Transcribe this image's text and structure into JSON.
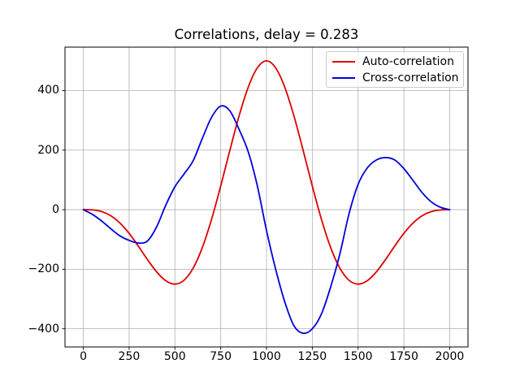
{
  "figure": {
    "background": "#ffffff"
  },
  "chart_data": {
    "type": "line",
    "title": "Correlations, delay = 0.283",
    "xlabel": "",
    "ylabel": "",
    "xlim": [
      -100,
      2100
    ],
    "ylim": [
      -461,
      546
    ],
    "grid": true,
    "grid_color": "#b0b0b0",
    "spine_color": "#000000",
    "legend_position": "upper right",
    "x_ticks": [
      0,
      250,
      500,
      750,
      1000,
      1250,
      1500,
      1750,
      2000
    ],
    "x_tick_labels": [
      "0",
      "250",
      "500",
      "750",
      "1000",
      "1250",
      "1500",
      "1750",
      "2000"
    ],
    "y_ticks": [
      -400,
      -200,
      0,
      200,
      400
    ],
    "y_tick_labels": [
      "−400",
      "−200",
      "0",
      "200",
      "400"
    ],
    "x": [
      0,
      50,
      100,
      150,
      200,
      250,
      300,
      350,
      400,
      450,
      500,
      550,
      600,
      650,
      700,
      750,
      800,
      850,
      900,
      950,
      1000,
      1050,
      1100,
      1150,
      1200,
      1250,
      1300,
      1350,
      1400,
      1450,
      1500,
      1550,
      1600,
      1650,
      1700,
      1750,
      1800,
      1850,
      1900,
      1950,
      2000
    ],
    "series": [
      {
        "name": "Auto-correlation",
        "color": "#dd0000",
        "values": [
          0,
          -0.8,
          -6.3,
          -20.3,
          -44.8,
          -79.6,
          -122.1,
          -167.3,
          -208.6,
          -238.6,
          -250,
          -236.9,
          -195.9,
          -126.7,
          -32.5,
          79.6,
          199.3,
          314.3,
          410.9,
          476.3,
          500,
          476.3,
          410.9,
          314.3,
          199.3,
          79.6,
          -32.5,
          -126.7,
          -195.9,
          -236.9,
          -250,
          -238.6,
          -208.6,
          -167.3,
          -122.1,
          -79.6,
          -44.8,
          -20.3,
          -6.3,
          -0.8,
          0
        ]
      },
      {
        "name": "Cross-correlation",
        "color": "#0000dd",
        "values": [
          0,
          -16,
          -38,
          -64,
          -88,
          -103,
          -112,
          -105,
          -58,
          15,
          77,
          120,
          165,
          240,
          310,
          348,
          332,
          270,
          195,
          80,
          -70,
          -200,
          -310,
          -390,
          -415,
          -400,
          -350,
          -260,
          -150,
          -15,
          85,
          140,
          167,
          175,
          167,
          138,
          98,
          57,
          26,
          8,
          0
        ]
      }
    ]
  }
}
